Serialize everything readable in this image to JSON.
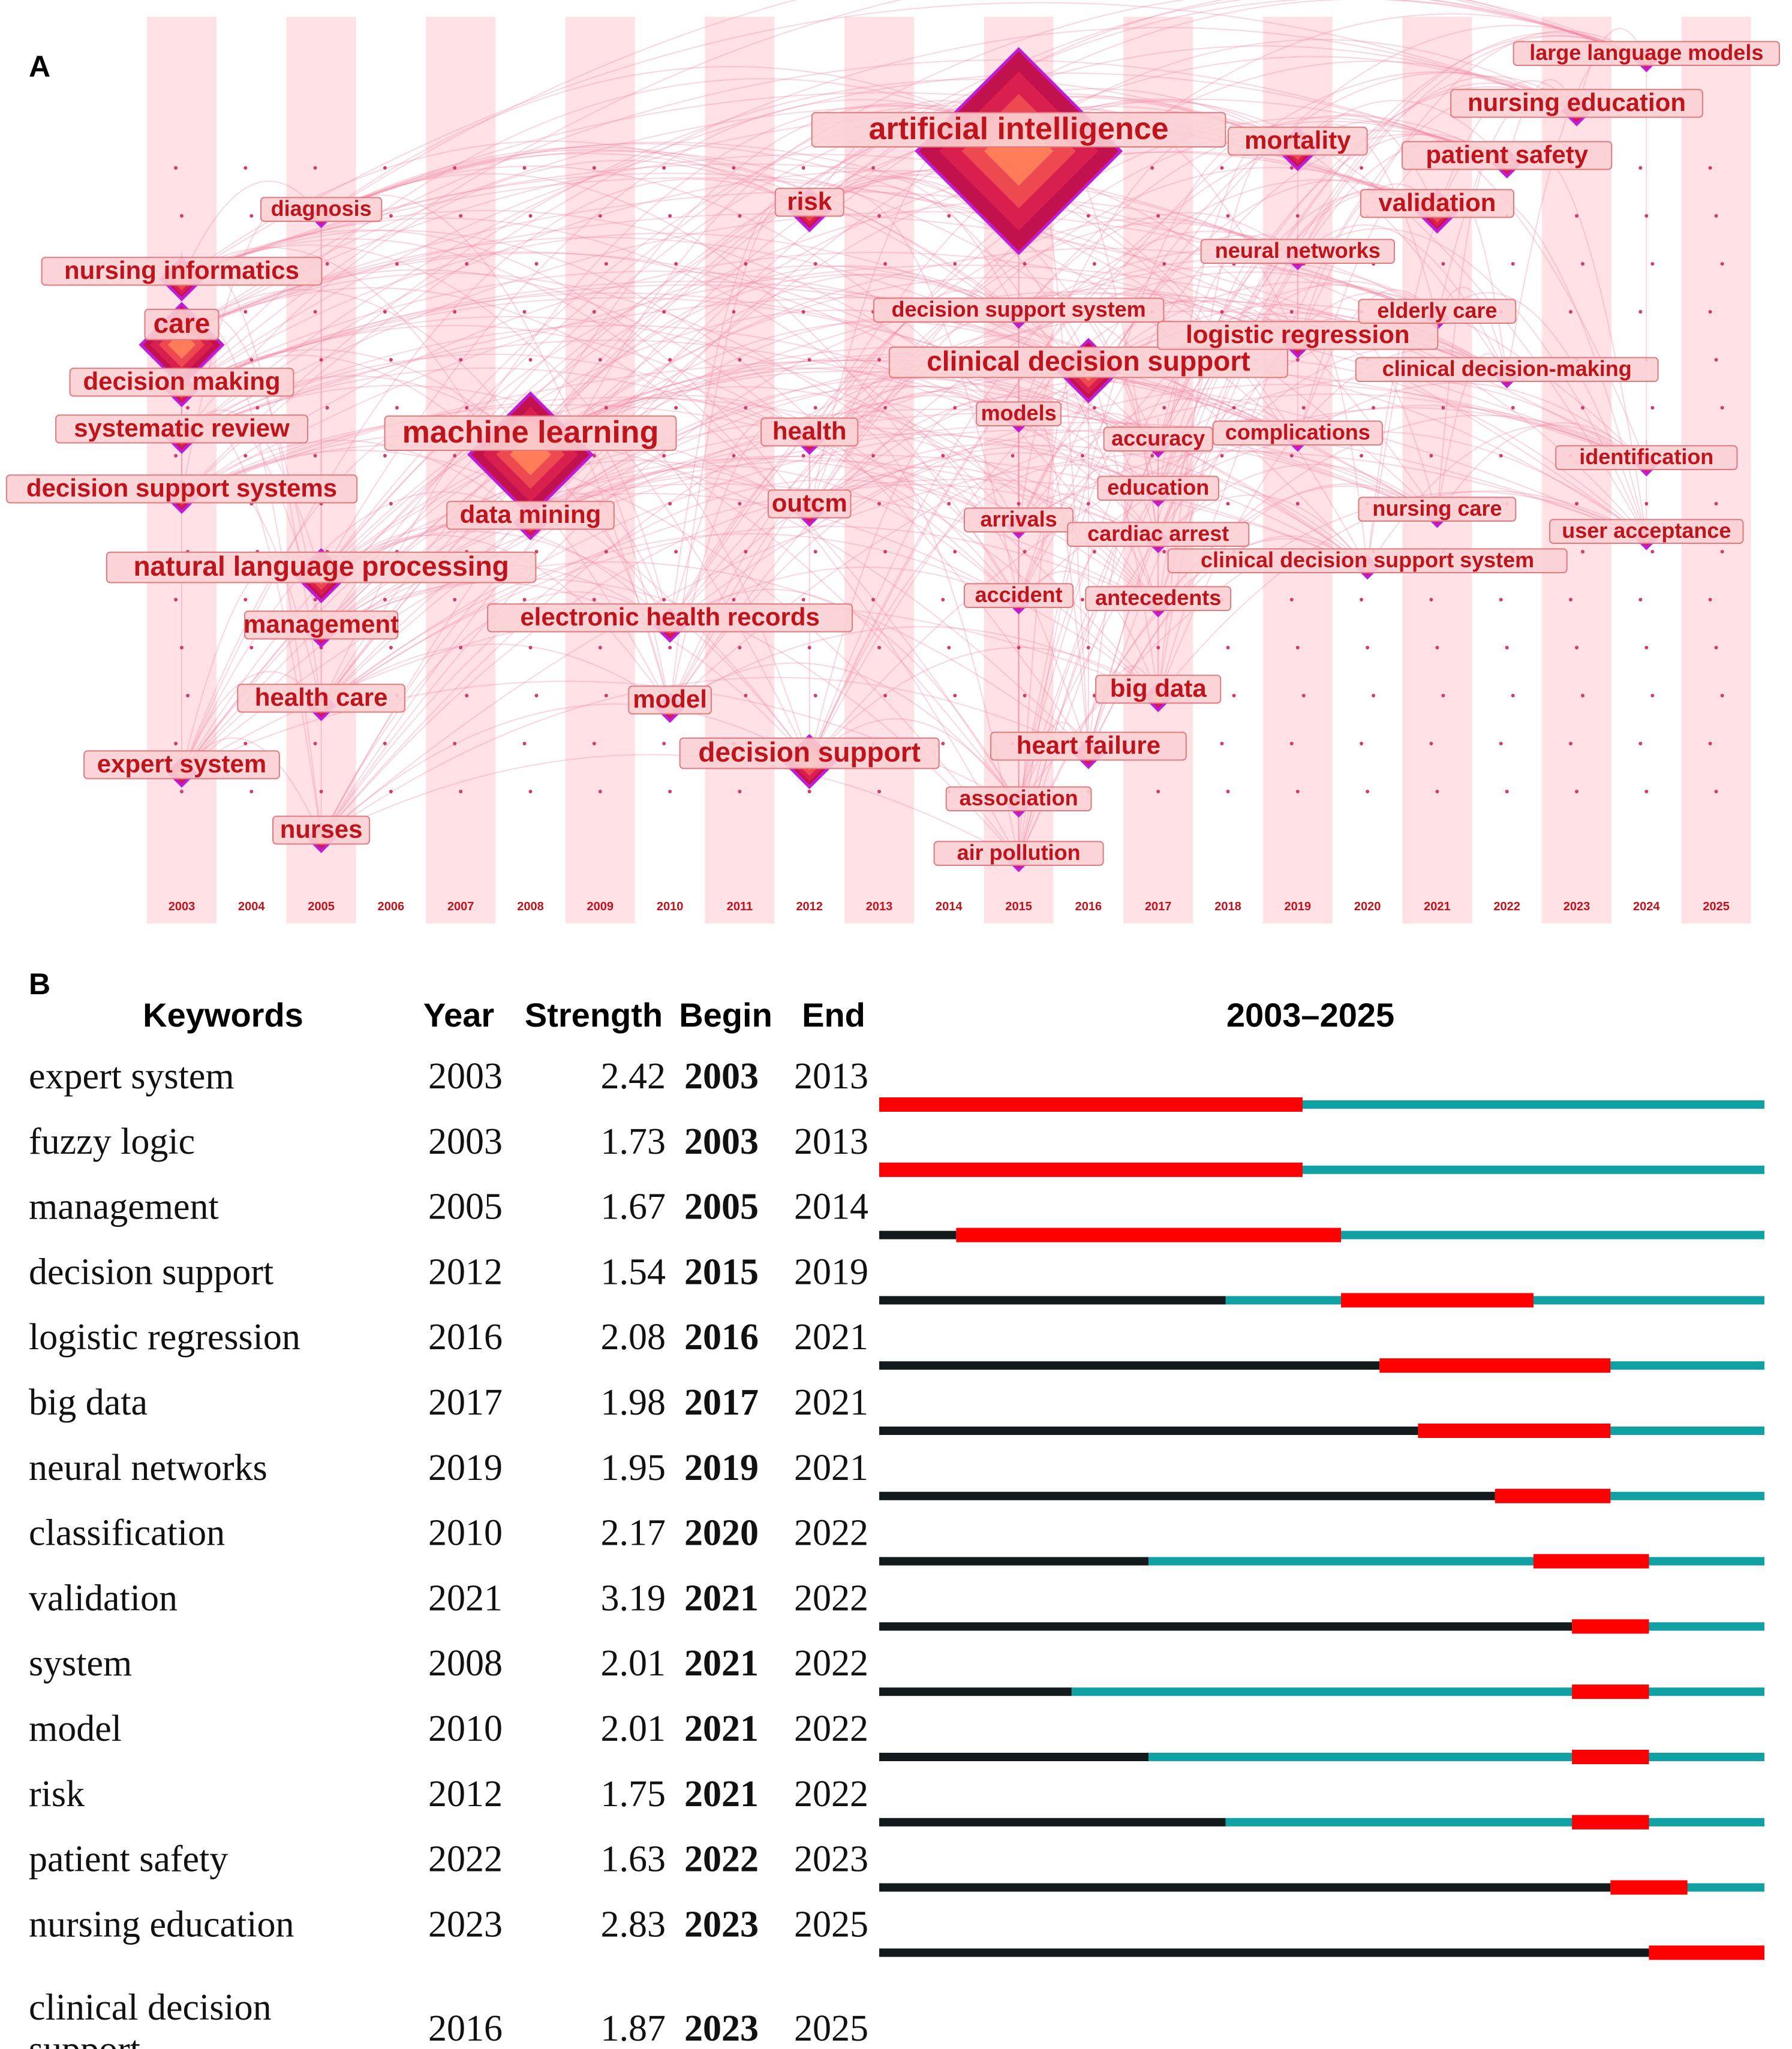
{
  "panels": {
    "a": "A",
    "b": "B"
  },
  "chart_data": [
    {
      "type": "timezone-network",
      "title": "",
      "years": [
        "2003",
        "2004",
        "2005",
        "2006",
        "2007",
        "2008",
        "2009",
        "2010",
        "2011",
        "2012",
        "2013",
        "2014",
        "2015",
        "2016",
        "2017",
        "2018",
        "2019",
        "2020",
        "2021",
        "2022",
        "2023",
        "2024",
        "2025"
      ],
      "keywords": [
        {
          "label": "artificial intelligence",
          "year": 2015,
          "weight": 10
        },
        {
          "label": "machine learning",
          "year": 2008,
          "weight": 6
        },
        {
          "label": "care",
          "year": 2003,
          "weight": 4
        },
        {
          "label": "clinical decision support",
          "year": 2016,
          "weight": 3
        },
        {
          "label": "natural language processing",
          "year": 2005,
          "weight": 2.5
        },
        {
          "label": "decision support",
          "year": 2012,
          "weight": 2.5
        },
        {
          "label": "nursing informatics",
          "year": 2003,
          "weight": 2
        },
        {
          "label": "risk",
          "year": 2012,
          "weight": 2
        },
        {
          "label": "mortality",
          "year": 2019,
          "weight": 2
        },
        {
          "label": "validation",
          "year": 2021,
          "weight": 2
        },
        {
          "label": "decision making",
          "year": 2003,
          "weight": 1.5
        },
        {
          "label": "systematic review",
          "year": 2003,
          "weight": 1.5
        },
        {
          "label": "decision support systems",
          "year": 2003,
          "weight": 1.5
        },
        {
          "label": "data mining",
          "year": 2008,
          "weight": 1.5
        },
        {
          "label": "electronic health records",
          "year": 2010,
          "weight": 1.5
        },
        {
          "label": "management",
          "year": 2005,
          "weight": 1.3
        },
        {
          "label": "health care",
          "year": 2005,
          "weight": 1.3
        },
        {
          "label": "expert system",
          "year": 2003,
          "weight": 1.3
        },
        {
          "label": "nurses",
          "year": 2005,
          "weight": 1.3
        },
        {
          "label": "diagnosis",
          "year": 2005,
          "weight": 1
        },
        {
          "label": "model",
          "year": 2010,
          "weight": 1.3
        },
        {
          "label": "health",
          "year": 2012,
          "weight": 1.3
        },
        {
          "label": "outcm",
          "year": 2012,
          "weight": 1.3
        },
        {
          "label": "decision support system",
          "year": 2015,
          "weight": 1
        },
        {
          "label": "models",
          "year": 2015,
          "weight": 1
        },
        {
          "label": "arrivals",
          "year": 2015,
          "weight": 1
        },
        {
          "label": "accident",
          "year": 2015,
          "weight": 1
        },
        {
          "label": "association",
          "year": 2015,
          "weight": 1
        },
        {
          "label": "air pollution",
          "year": 2015,
          "weight": 1
        },
        {
          "label": "accuracy",
          "year": 2017,
          "weight": 1
        },
        {
          "label": "education",
          "year": 2017,
          "weight": 1
        },
        {
          "label": "cardiac arrest",
          "year": 2017,
          "weight": 1
        },
        {
          "label": "antecedents",
          "year": 2017,
          "weight": 1
        },
        {
          "label": "big data",
          "year": 2017,
          "weight": 1.3
        },
        {
          "label": "heart failure",
          "year": 2016,
          "weight": 1.3
        },
        {
          "label": "complications",
          "year": 2019,
          "weight": 1
        },
        {
          "label": "neural networks",
          "year": 2019,
          "weight": 1
        },
        {
          "label": "logistic regression",
          "year": 2019,
          "weight": 1.3
        },
        {
          "label": "clinical decision support system",
          "year": 2020,
          "weight": 1
        },
        {
          "label": "elderly care",
          "year": 2021,
          "weight": 1
        },
        {
          "label": "clinical decision-making",
          "year": 2022,
          "weight": 1
        },
        {
          "label": "nursing care",
          "year": 2021,
          "weight": 1
        },
        {
          "label": "patient safety",
          "year": 2022,
          "weight": 1.3
        },
        {
          "label": "nursing education",
          "year": 2023,
          "weight": 1.3
        },
        {
          "label": "large language models",
          "year": 2024,
          "weight": 1
        },
        {
          "label": "identification",
          "year": 2024,
          "weight": 1
        },
        {
          "label": "user acceptance",
          "year": 2024,
          "weight": 1
        }
      ]
    },
    {
      "type": "burst-timeline",
      "title": "2003–2025",
      "range": [
        2003,
        2025
      ],
      "columns": [
        "Keywords",
        "Year",
        "Strength",
        "Begin",
        "End",
        "2003–2025"
      ],
      "rows": [
        {
          "keyword": "expert system",
          "year": "2003",
          "strength": "2.42",
          "begin": "2003",
          "end": "2013"
        },
        {
          "keyword": "fuzzy logic",
          "year": "2003",
          "strength": "1.73",
          "begin": "2003",
          "end": "2013"
        },
        {
          "keyword": "management",
          "year": "2005",
          "strength": "1.67",
          "begin": "2005",
          "end": "2014"
        },
        {
          "keyword": "decision support",
          "year": "2012",
          "strength": "1.54",
          "begin": "2015",
          "end": "2019"
        },
        {
          "keyword": "logistic regression",
          "year": "2016",
          "strength": "2.08",
          "begin": "2016",
          "end": "2021"
        },
        {
          "keyword": "big data",
          "year": "2017",
          "strength": "1.98",
          "begin": "2017",
          "end": "2021"
        },
        {
          "keyword": "neural networks",
          "year": "2019",
          "strength": "1.95",
          "begin": "2019",
          "end": "2021"
        },
        {
          "keyword": "classification",
          "year": "2010",
          "strength": "2.17",
          "begin": "2020",
          "end": "2022"
        },
        {
          "keyword": "validation",
          "year": "2021",
          "strength": "3.19",
          "begin": "2021",
          "end": "2022"
        },
        {
          "keyword": "system",
          "year": "2008",
          "strength": "2.01",
          "begin": "2021",
          "end": "2022"
        },
        {
          "keyword": "model",
          "year": "2010",
          "strength": "2.01",
          "begin": "2021",
          "end": "2022"
        },
        {
          "keyword": "risk",
          "year": "2012",
          "strength": "1.75",
          "begin": "2021",
          "end": "2022"
        },
        {
          "keyword": "patient safety",
          "year": "2022",
          "strength": "1.63",
          "begin": "2022",
          "end": "2023"
        },
        {
          "keyword": "nursing education",
          "year": "2023",
          "strength": "2.83",
          "begin": "2023",
          "end": "2025"
        },
        {
          "keyword": "clinical decision support",
          "year": "2016",
          "strength": "1.87",
          "begin": "2023",
          "end": "2025"
        }
      ],
      "colors": {
        "before": "#121a1c",
        "after": "#11a0a4",
        "burst": "#ff0000"
      }
    }
  ]
}
